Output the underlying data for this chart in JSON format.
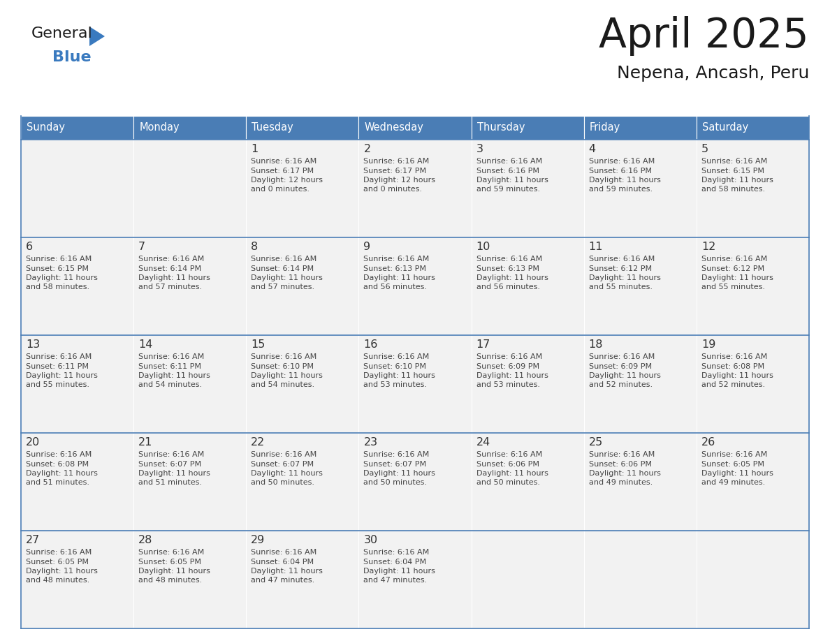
{
  "title": "April 2025",
  "subtitle": "Nepena, Ancash, Peru",
  "header_bg": "#4a7db5",
  "header_text_color": "#ffffff",
  "cell_bg": "#f2f2f2",
  "border_color": "#4a7db5",
  "text_color": "#444444",
  "day_number_color": "#333333",
  "days_of_week": [
    "Sunday",
    "Monday",
    "Tuesday",
    "Wednesday",
    "Thursday",
    "Friday",
    "Saturday"
  ],
  "calendar_data": [
    [
      {
        "day": "",
        "sunrise": "",
        "sunset": "",
        "daylight": ""
      },
      {
        "day": "",
        "sunrise": "",
        "sunset": "",
        "daylight": ""
      },
      {
        "day": "1",
        "sunrise": "6:16 AM",
        "sunset": "6:17 PM",
        "daylight": "12 hours\nand 0 minutes."
      },
      {
        "day": "2",
        "sunrise": "6:16 AM",
        "sunset": "6:17 PM",
        "daylight": "12 hours\nand 0 minutes."
      },
      {
        "day": "3",
        "sunrise": "6:16 AM",
        "sunset": "6:16 PM",
        "daylight": "11 hours\nand 59 minutes."
      },
      {
        "day": "4",
        "sunrise": "6:16 AM",
        "sunset": "6:16 PM",
        "daylight": "11 hours\nand 59 minutes."
      },
      {
        "day": "5",
        "sunrise": "6:16 AM",
        "sunset": "6:15 PM",
        "daylight": "11 hours\nand 58 minutes."
      }
    ],
    [
      {
        "day": "6",
        "sunrise": "6:16 AM",
        "sunset": "6:15 PM",
        "daylight": "11 hours\nand 58 minutes."
      },
      {
        "day": "7",
        "sunrise": "6:16 AM",
        "sunset": "6:14 PM",
        "daylight": "11 hours\nand 57 minutes."
      },
      {
        "day": "8",
        "sunrise": "6:16 AM",
        "sunset": "6:14 PM",
        "daylight": "11 hours\nand 57 minutes."
      },
      {
        "day": "9",
        "sunrise": "6:16 AM",
        "sunset": "6:13 PM",
        "daylight": "11 hours\nand 56 minutes."
      },
      {
        "day": "10",
        "sunrise": "6:16 AM",
        "sunset": "6:13 PM",
        "daylight": "11 hours\nand 56 minutes."
      },
      {
        "day": "11",
        "sunrise": "6:16 AM",
        "sunset": "6:12 PM",
        "daylight": "11 hours\nand 55 minutes."
      },
      {
        "day": "12",
        "sunrise": "6:16 AM",
        "sunset": "6:12 PM",
        "daylight": "11 hours\nand 55 minutes."
      }
    ],
    [
      {
        "day": "13",
        "sunrise": "6:16 AM",
        "sunset": "6:11 PM",
        "daylight": "11 hours\nand 55 minutes."
      },
      {
        "day": "14",
        "sunrise": "6:16 AM",
        "sunset": "6:11 PM",
        "daylight": "11 hours\nand 54 minutes."
      },
      {
        "day": "15",
        "sunrise": "6:16 AM",
        "sunset": "6:10 PM",
        "daylight": "11 hours\nand 54 minutes."
      },
      {
        "day": "16",
        "sunrise": "6:16 AM",
        "sunset": "6:10 PM",
        "daylight": "11 hours\nand 53 minutes."
      },
      {
        "day": "17",
        "sunrise": "6:16 AM",
        "sunset": "6:09 PM",
        "daylight": "11 hours\nand 53 minutes."
      },
      {
        "day": "18",
        "sunrise": "6:16 AM",
        "sunset": "6:09 PM",
        "daylight": "11 hours\nand 52 minutes."
      },
      {
        "day": "19",
        "sunrise": "6:16 AM",
        "sunset": "6:08 PM",
        "daylight": "11 hours\nand 52 minutes."
      }
    ],
    [
      {
        "day": "20",
        "sunrise": "6:16 AM",
        "sunset": "6:08 PM",
        "daylight": "11 hours\nand 51 minutes."
      },
      {
        "day": "21",
        "sunrise": "6:16 AM",
        "sunset": "6:07 PM",
        "daylight": "11 hours\nand 51 minutes."
      },
      {
        "day": "22",
        "sunrise": "6:16 AM",
        "sunset": "6:07 PM",
        "daylight": "11 hours\nand 50 minutes."
      },
      {
        "day": "23",
        "sunrise": "6:16 AM",
        "sunset": "6:07 PM",
        "daylight": "11 hours\nand 50 minutes."
      },
      {
        "day": "24",
        "sunrise": "6:16 AM",
        "sunset": "6:06 PM",
        "daylight": "11 hours\nand 50 minutes."
      },
      {
        "day": "25",
        "sunrise": "6:16 AM",
        "sunset": "6:06 PM",
        "daylight": "11 hours\nand 49 minutes."
      },
      {
        "day": "26",
        "sunrise": "6:16 AM",
        "sunset": "6:05 PM",
        "daylight": "11 hours\nand 49 minutes."
      }
    ],
    [
      {
        "day": "27",
        "sunrise": "6:16 AM",
        "sunset": "6:05 PM",
        "daylight": "11 hours\nand 48 minutes."
      },
      {
        "day": "28",
        "sunrise": "6:16 AM",
        "sunset": "6:05 PM",
        "daylight": "11 hours\nand 48 minutes."
      },
      {
        "day": "29",
        "sunrise": "6:16 AM",
        "sunset": "6:04 PM",
        "daylight": "11 hours\nand 47 minutes."
      },
      {
        "day": "30",
        "sunrise": "6:16 AM",
        "sunset": "6:04 PM",
        "daylight": "11 hours\nand 47 minutes."
      },
      {
        "day": "",
        "sunrise": "",
        "sunset": "",
        "daylight": ""
      },
      {
        "day": "",
        "sunrise": "",
        "sunset": "",
        "daylight": ""
      },
      {
        "day": "",
        "sunrise": "",
        "sunset": "",
        "daylight": ""
      }
    ]
  ],
  "logo_general_color": "#1a1a1a",
  "logo_blue_color": "#3a7abf",
  "logo_triangle_color": "#3a7abf"
}
